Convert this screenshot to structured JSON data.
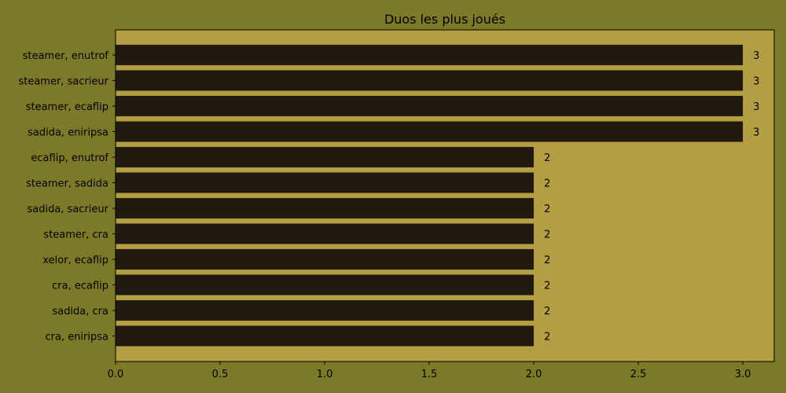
{
  "colors": {
    "figure_bg": "#7b7a28",
    "plot_bg": "#b39e43",
    "bar": "#211a10",
    "text": "#000000"
  },
  "chart_data": {
    "type": "bar",
    "orientation": "horizontal",
    "title": "Duos les plus joués",
    "xlabel": "",
    "ylabel": "",
    "categories": [
      "steamer, enutrof",
      "steamer, sacrieur",
      "steamer, ecaflip",
      "sadida, eniripsa",
      "ecaflip, enutrof",
      "steamer, sadida",
      "sadida, sacrieur",
      "steamer, cra",
      "xelor, ecaflip",
      "cra, ecaflip",
      "sadida, cra",
      "cra, eniripsa"
    ],
    "values": [
      3,
      3,
      3,
      3,
      2,
      2,
      2,
      2,
      2,
      2,
      2,
      2
    ],
    "data_labels": [
      "3",
      "3",
      "3",
      "3",
      "2",
      "2",
      "2",
      "2",
      "2",
      "2",
      "2",
      "2"
    ],
    "xlim": [
      0,
      3.15
    ],
    "xticks": [
      0.0,
      0.5,
      1.0,
      1.5,
      2.0,
      2.5,
      3.0
    ],
    "xtick_labels": [
      "0.0",
      "0.5",
      "1.0",
      "1.5",
      "2.0",
      "2.5",
      "3.0"
    ],
    "grid": false,
    "legend": "none"
  }
}
